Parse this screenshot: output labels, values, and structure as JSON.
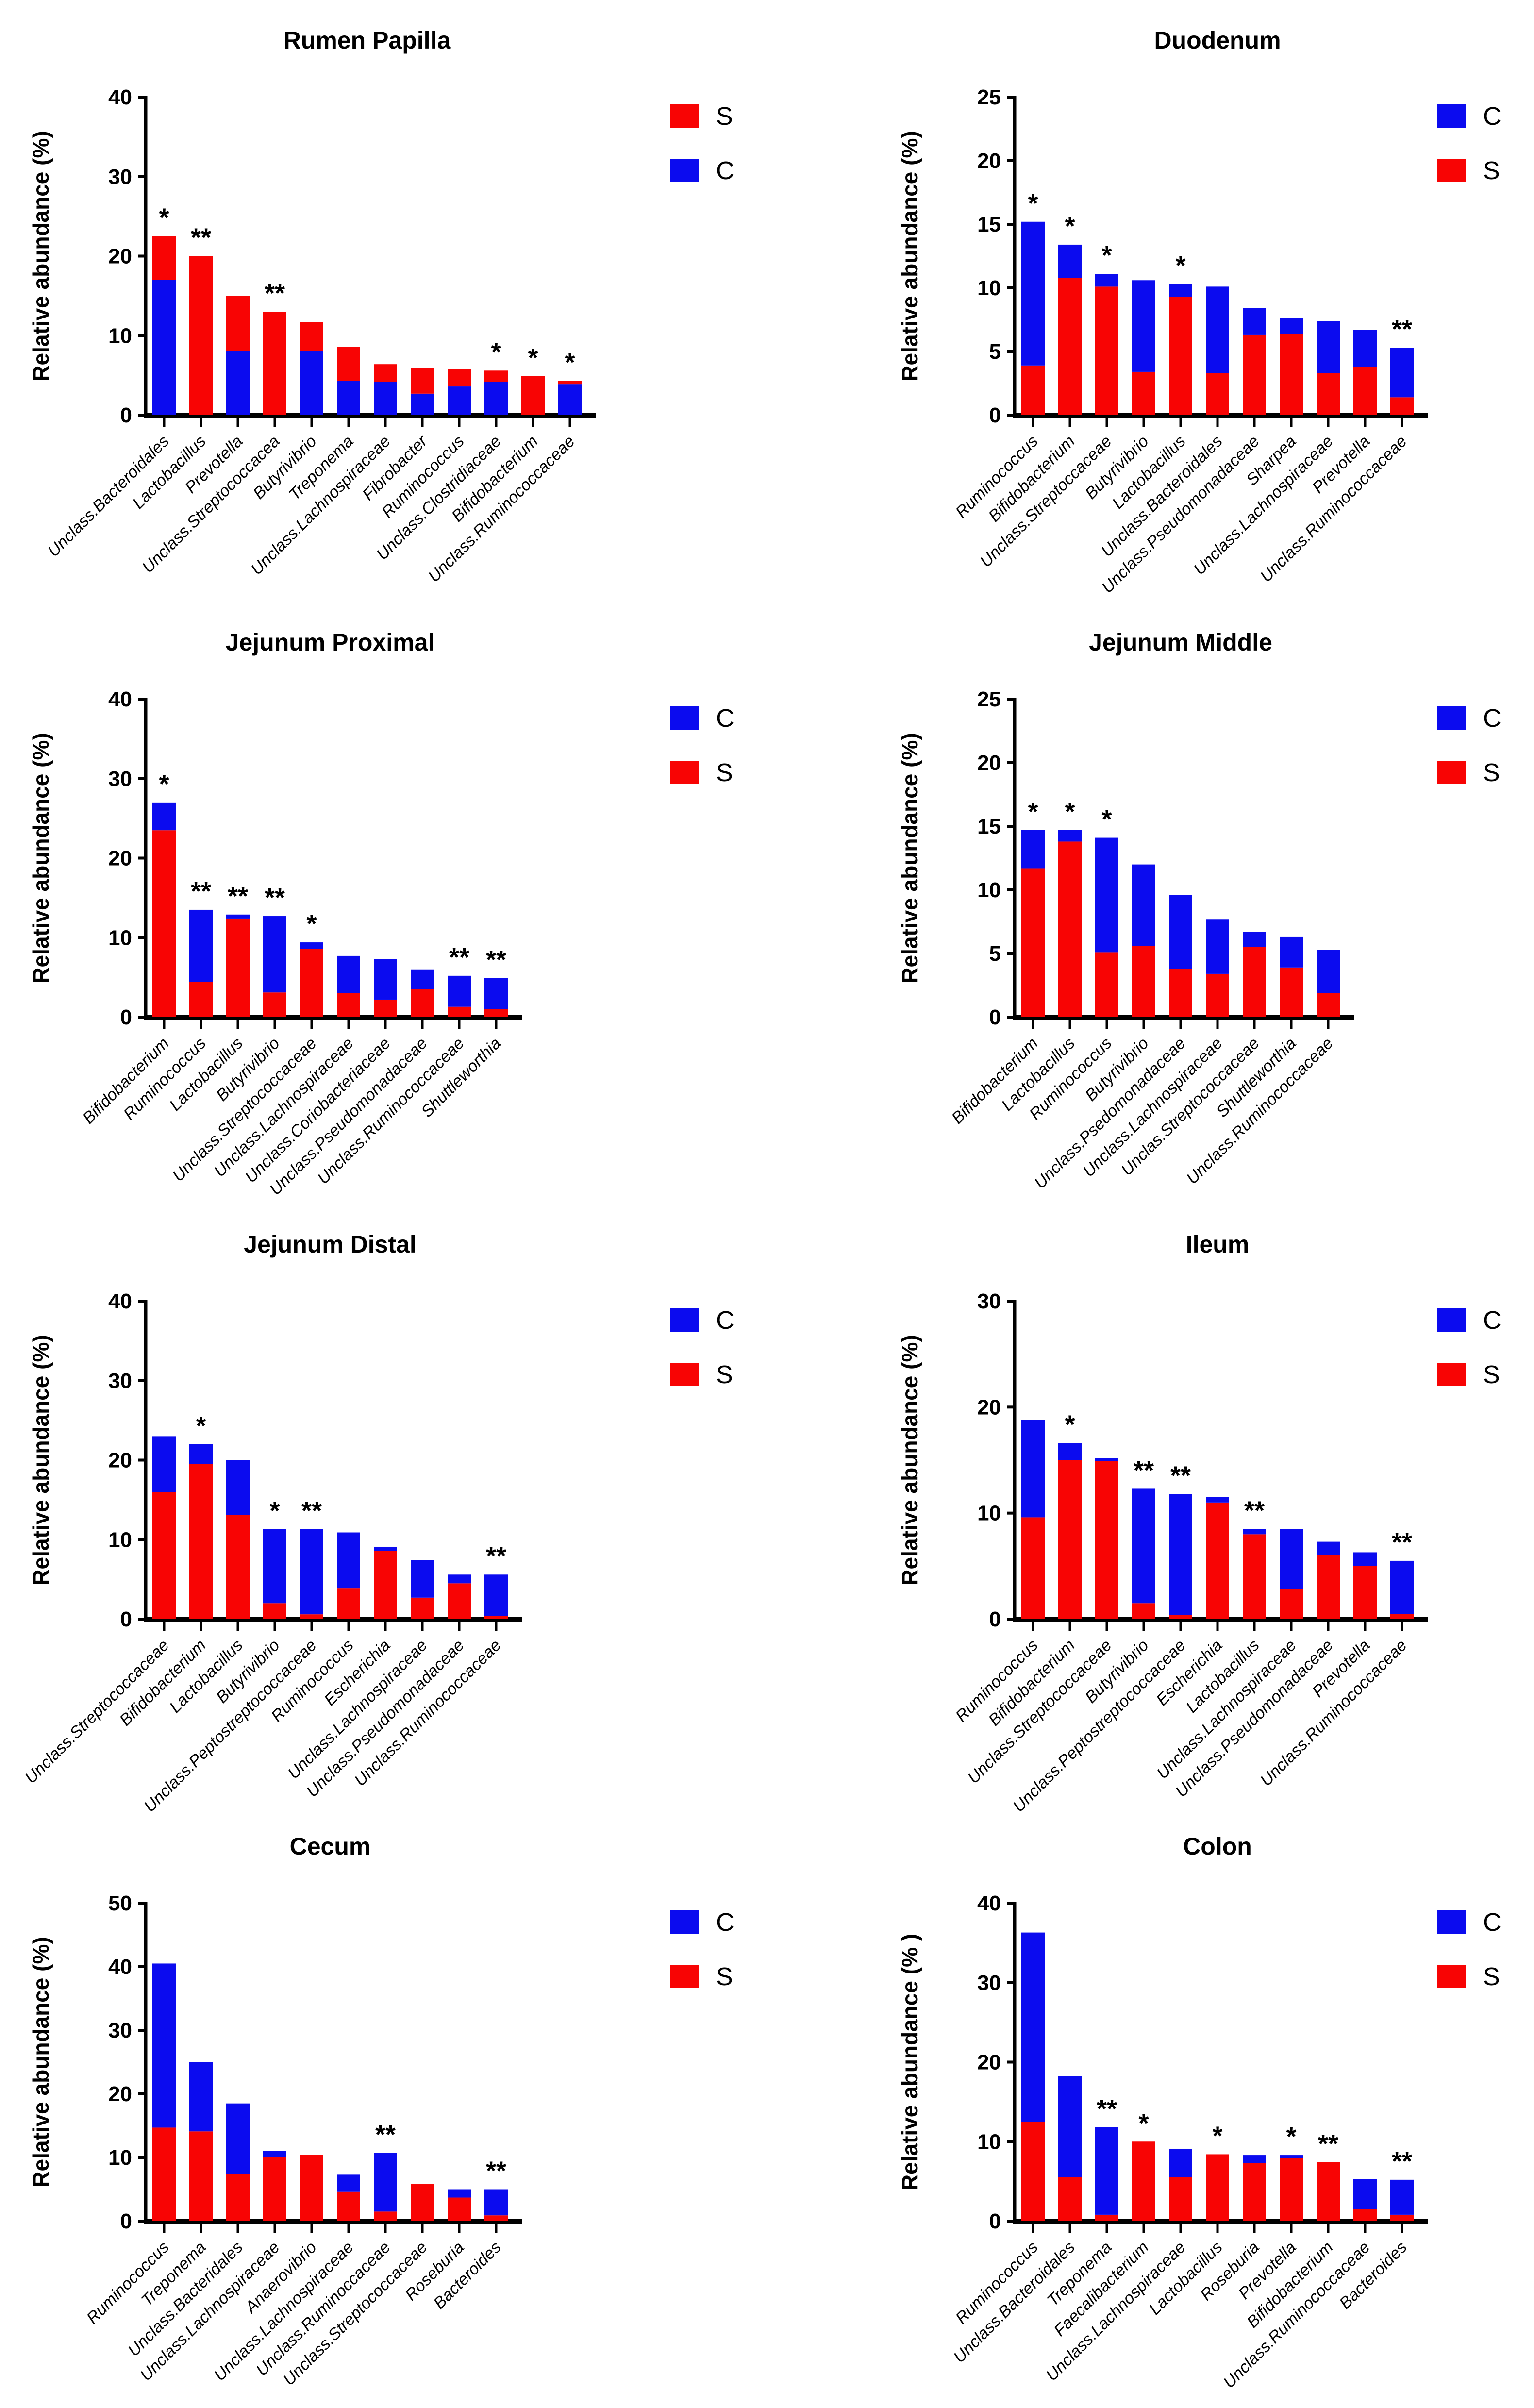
{
  "figure": {
    "background": "#ffffff",
    "colors": {
      "S": "#F80404",
      "C": "#0B0BEF",
      "axis": "#000000",
      "text": "#000000"
    },
    "legend_labels": {
      "S": "S",
      "C": "C"
    }
  },
  "chart_data": [
    {
      "type": "bar",
      "stacked": true,
      "title": "Rumen Papilla",
      "ylabel": "Relative abundance (%)",
      "ylim": [
        0,
        40
      ],
      "yticks": [
        0,
        10,
        20,
        30,
        40
      ],
      "legend": [
        "S",
        "C"
      ],
      "legend_position": "top-right",
      "stack_order": [
        "C",
        "S"
      ],
      "bars": [
        {
          "label": "Unclass.Bacteroidales",
          "C": 17.0,
          "S": 5.5,
          "sig": "*"
        },
        {
          "label": "Lactobacillus",
          "C": 0,
          "S": 20.0,
          "sig": "**"
        },
        {
          "label": "Prevotella",
          "C": 8.0,
          "S": 7.0,
          "sig": ""
        },
        {
          "label": "Unclass.Streptococcacea",
          "C": 0,
          "S": 13.0,
          "sig": "**"
        },
        {
          "label": "Butyrivibrio",
          "C": 8.0,
          "S": 3.7,
          "sig": ""
        },
        {
          "label": "Treponema",
          "C": 4.3,
          "S": 4.3,
          "sig": ""
        },
        {
          "label": "Unclass.Lachnospiraceae",
          "C": 4.2,
          "S": 2.2,
          "sig": ""
        },
        {
          "label": "Fibrobacter",
          "C": 2.7,
          "S": 3.2,
          "sig": ""
        },
        {
          "label": "Ruminococcus",
          "C": 3.6,
          "S": 2.2,
          "sig": ""
        },
        {
          "label": "Unclass.Clostridiaceae",
          "C": 4.2,
          "S": 1.4,
          "sig": "*"
        },
        {
          "label": "Bifidobacterium",
          "C": 0,
          "S": 4.9,
          "sig": "*"
        },
        {
          "label": "Unclass.Ruminococcaceae",
          "C": 3.9,
          "S": 0.4,
          "sig": "*"
        }
      ]
    },
    {
      "type": "bar",
      "stacked": true,
      "title": "Duodenum",
      "ylabel": "Relative abundance (%)",
      "ylim": [
        0,
        25
      ],
      "yticks": [
        0,
        5,
        10,
        15,
        20,
        25
      ],
      "legend": [
        "C",
        "S"
      ],
      "legend_position": "top-right",
      "stack_order": [
        "S",
        "C"
      ],
      "bars": [
        {
          "label": "Ruminococcus",
          "S": 3.9,
          "C": 11.3,
          "sig": "*"
        },
        {
          "label": "Bifidobacterium",
          "S": 10.8,
          "C": 2.6,
          "sig": "*"
        },
        {
          "label": "Unclass.Streptoccaceae",
          "S": 10.1,
          "C": 1.0,
          "sig": "*"
        },
        {
          "label": "Butyrivibrio",
          "S": 3.4,
          "C": 7.2,
          "sig": ""
        },
        {
          "label": "Lactobacillus",
          "S": 9.3,
          "C": 1.0,
          "sig": "*"
        },
        {
          "label": "Unclass.Bacteroidales",
          "S": 3.3,
          "C": 6.8,
          "sig": ""
        },
        {
          "label": "Unclass.Pseudomonadaceae",
          "S": 6.3,
          "C": 2.1,
          "sig": ""
        },
        {
          "label": "Sharpea",
          "S": 6.4,
          "C": 1.2,
          "sig": ""
        },
        {
          "label": "Unclass.Lachnospiraceae",
          "S": 3.3,
          "C": 4.1,
          "sig": ""
        },
        {
          "label": "Prevotella",
          "S": 3.8,
          "C": 2.9,
          "sig": ""
        },
        {
          "label": "Unclass.Ruminococcaceae",
          "S": 1.4,
          "C": 3.9,
          "sig": "**"
        }
      ]
    },
    {
      "type": "bar",
      "stacked": true,
      "title": "Jejunum Proximal",
      "ylabel": "Relative abundance (%)",
      "ylim": [
        0,
        40
      ],
      "yticks": [
        0,
        10,
        20,
        30,
        40
      ],
      "legend": [
        "C",
        "S"
      ],
      "legend_position": "top-right",
      "stack_order": [
        "S",
        "C"
      ],
      "bars": [
        {
          "label": "Bifidobacterium",
          "S": 23.5,
          "C": 3.5,
          "sig": "*"
        },
        {
          "label": "Ruminococcus",
          "S": 4.4,
          "C": 9.1,
          "sig": "**"
        },
        {
          "label": "Lactobacillus",
          "S": 12.4,
          "C": 0.5,
          "sig": "**"
        },
        {
          "label": "Butyrivibrio",
          "S": 3.1,
          "C": 9.6,
          "sig": "**"
        },
        {
          "label": "Unclass.Streptococcaceae",
          "S": 8.6,
          "C": 0.8,
          "sig": "*"
        },
        {
          "label": "Unclass.Lachnospiraceae",
          "S": 3.0,
          "C": 4.7,
          "sig": ""
        },
        {
          "label": "Unclass.Coriobacteriaceae",
          "S": 2.2,
          "C": 5.1,
          "sig": ""
        },
        {
          "label": "Unclass.Pseudomonadaceae",
          "S": 3.5,
          "C": 2.5,
          "sig": ""
        },
        {
          "label": "Unclass.Ruminococcaceae",
          "S": 1.3,
          "C": 3.9,
          "sig": "**"
        },
        {
          "label": "Shuttleworthia",
          "S": 1.0,
          "C": 3.9,
          "sig": "**"
        }
      ]
    },
    {
      "type": "bar",
      "stacked": true,
      "title": "Jejunum Middle",
      "ylabel": "Relative abundance (%)",
      "ylim": [
        0,
        25
      ],
      "yticks": [
        0,
        5,
        10,
        15,
        20,
        25
      ],
      "legend": [
        "C",
        "S"
      ],
      "legend_position": "top-right",
      "stack_order": [
        "S",
        "C"
      ],
      "bars": [
        {
          "label": "Bifidobacterium",
          "S": 11.7,
          "C": 3.0,
          "sig": "*"
        },
        {
          "label": "Lactobacillus",
          "S": 13.8,
          "C": 0.9,
          "sig": "*"
        },
        {
          "label": "Ruminococcus",
          "S": 5.1,
          "C": 9.0,
          "sig": "*"
        },
        {
          "label": "Butyrivibrio",
          "S": 5.6,
          "C": 6.4,
          "sig": ""
        },
        {
          "label": "Unclass.Psedomonadaceae",
          "S": 3.8,
          "C": 5.8,
          "sig": ""
        },
        {
          "label": "Unclass.Lachnospiraceae",
          "S": 3.4,
          "C": 4.3,
          "sig": ""
        },
        {
          "label": "Unclas.Streptococcaceae",
          "S": 5.5,
          "C": 1.2,
          "sig": ""
        },
        {
          "label": "Shuttleworthia",
          "S": 3.9,
          "C": 2.4,
          "sig": ""
        },
        {
          "label": "Unclass.Ruminococcaceae",
          "S": 1.9,
          "C": 3.4,
          "sig": ""
        }
      ]
    },
    {
      "type": "bar",
      "stacked": true,
      "title": "Jejunum Distal",
      "ylabel": "Relative abundance (%)",
      "ylim": [
        0,
        40
      ],
      "yticks": [
        0,
        10,
        20,
        30,
        40
      ],
      "legend": [
        "C",
        "S"
      ],
      "legend_position": "top-right",
      "stack_order": [
        "S",
        "C"
      ],
      "bars": [
        {
          "label": "Unclass.Streptococcaceae",
          "S": 16.0,
          "C": 7.0,
          "sig": ""
        },
        {
          "label": "Bifidobacterium",
          "S": 19.5,
          "C": 2.5,
          "sig": "*"
        },
        {
          "label": "Lactobacillus",
          "S": 13.1,
          "C": 6.9,
          "sig": ""
        },
        {
          "label": "Butyrivibrio",
          "S": 2.0,
          "C": 9.3,
          "sig": "*"
        },
        {
          "label": "Unclass.Peptostreptococcaceae",
          "S": 0.6,
          "C": 10.7,
          "sig": "**"
        },
        {
          "label": "Ruminococcus",
          "S": 3.9,
          "C": 7.0,
          "sig": ""
        },
        {
          "label": "Escherichia",
          "S": 8.6,
          "C": 0.5,
          "sig": ""
        },
        {
          "label": "Unclass.Lachnospiraceae",
          "S": 2.7,
          "C": 4.7,
          "sig": ""
        },
        {
          "label": "Unclass.Pseudomonadaceae",
          "S": 4.5,
          "C": 1.1,
          "sig": ""
        },
        {
          "label": "Unclass.Ruminococcaceae",
          "S": 0.4,
          "C": 5.2,
          "sig": "**"
        }
      ]
    },
    {
      "type": "bar",
      "stacked": true,
      "title": "Ileum",
      "ylabel": "Relative abundance (%)",
      "ylim": [
        0,
        30
      ],
      "yticks": [
        0,
        10,
        20,
        30
      ],
      "legend": [
        "C",
        "S"
      ],
      "legend_position": "top-right",
      "stack_order": [
        "S",
        "C"
      ],
      "bars": [
        {
          "label": "Ruminococcus",
          "S": 9.6,
          "C": 9.2,
          "sig": ""
        },
        {
          "label": "Bifidobacterium",
          "S": 15.0,
          "C": 1.6,
          "sig": "*"
        },
        {
          "label": "Unclass.Streptococcaceae",
          "S": 14.9,
          "C": 0.3,
          "sig": ""
        },
        {
          "label": "Butyrivibrio",
          "S": 1.5,
          "C": 10.8,
          "sig": "**"
        },
        {
          "label": "Unclass.Peptostreptococcaceae",
          "S": 0.4,
          "C": 11.4,
          "sig": "**"
        },
        {
          "label": "Escherichia",
          "S": 11.0,
          "C": 0.5,
          "sig": ""
        },
        {
          "label": "Lactobacillus",
          "S": 8.0,
          "C": 0.5,
          "sig": "**"
        },
        {
          "label": "Unclass.Lachnospiraceae",
          "S": 2.8,
          "C": 5.7,
          "sig": ""
        },
        {
          "label": "Unclass.Pseudomonadaceae",
          "S": 6.0,
          "C": 1.3,
          "sig": ""
        },
        {
          "label": "Prevotella",
          "S": 5.0,
          "C": 1.3,
          "sig": ""
        },
        {
          "label": "Unclass.Ruminococcaceae",
          "S": 0.5,
          "C": 5.0,
          "sig": "**"
        }
      ]
    },
    {
      "type": "bar",
      "stacked": true,
      "title": "Cecum",
      "ylabel": "Relative abundance (%)",
      "ylim": [
        0,
        50
      ],
      "yticks": [
        0,
        10,
        20,
        30,
        40,
        50
      ],
      "legend": [
        "C",
        "S"
      ],
      "legend_position": "top-right",
      "stack_order": [
        "S",
        "C"
      ],
      "bars": [
        {
          "label": "Ruminococcus",
          "S": 14.7,
          "C": 25.8,
          "sig": ""
        },
        {
          "label": "Treponema",
          "S": 14.1,
          "C": 10.9,
          "sig": ""
        },
        {
          "label": "Unclass.Bacteridales",
          "S": 7.4,
          "C": 11.1,
          "sig": ""
        },
        {
          "label": "Unclass.Lachnospiraceae",
          "S": 10.1,
          "C": 0.9,
          "sig": ""
        },
        {
          "label": "Anaerovibrio",
          "S": 10.4,
          "C": 0,
          "sig": ""
        },
        {
          "label": "Unclass.Lachnospiraceae",
          "S": 4.6,
          "C": 2.7,
          "sig": ""
        },
        {
          "label": "Unclass.Ruminoccaceae",
          "S": 1.5,
          "C": 9.2,
          "sig": "**"
        },
        {
          "label": "Unclass.Streptococcaceae",
          "S": 5.8,
          "C": 0,
          "sig": ""
        },
        {
          "label": "Roseburia",
          "S": 3.7,
          "C": 1.3,
          "sig": ""
        },
        {
          "label": "Bacteroides",
          "S": 0.9,
          "C": 4.1,
          "sig": "**"
        }
      ]
    },
    {
      "type": "bar",
      "stacked": true,
      "title": "Colon",
      "ylabel": "Relative abundance (% )",
      "ylim": [
        0,
        40
      ],
      "yticks": [
        0,
        10,
        20,
        30,
        40
      ],
      "legend": [
        "C",
        "S"
      ],
      "legend_position": "top-right",
      "stack_order": [
        "S",
        "C"
      ],
      "bars": [
        {
          "label": "Ruminococcus",
          "S": 12.5,
          "C": 23.8,
          "sig": ""
        },
        {
          "label": "Unclass.Bacteroidales",
          "S": 5.5,
          "C": 12.7,
          "sig": ""
        },
        {
          "label": "Treponema",
          "S": 0.8,
          "C": 11.0,
          "sig": "**"
        },
        {
          "label": "Faecalibacterium",
          "S": 10.0,
          "C": 0,
          "sig": "*"
        },
        {
          "label": "Unclass.Lachnospiraceae",
          "S": 5.5,
          "C": 3.6,
          "sig": ""
        },
        {
          "label": "Lactobacillus",
          "S": 8.4,
          "C": 0,
          "sig": "*"
        },
        {
          "label": "Roseburia",
          "S": 7.3,
          "C": 1.0,
          "sig": ""
        },
        {
          "label": "Prevotella",
          "S": 7.9,
          "C": 0.4,
          "sig": "*"
        },
        {
          "label": "Bifidobacterium",
          "S": 7.4,
          "C": 0,
          "sig": "**"
        },
        {
          "label": "Unclass.Ruminococcaceae",
          "S": 1.5,
          "C": 3.8,
          "sig": ""
        },
        {
          "label": "Bacteroides",
          "S": 0.8,
          "C": 4.4,
          "sig": "**"
        }
      ]
    }
  ]
}
